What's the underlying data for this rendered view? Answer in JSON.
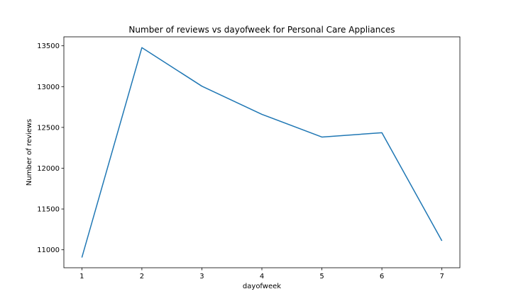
{
  "chart_data": {
    "type": "line",
    "title": "Number of reviews vs dayofweek for Personal Care Appliances",
    "xlabel": "dayofweek",
    "ylabel": "Number of reviews",
    "x": [
      1,
      2,
      3,
      4,
      5,
      6,
      7
    ],
    "series": [
      {
        "values": [
          10905,
          13478,
          13005,
          12660,
          12382,
          12435,
          11110
        ]
      }
    ],
    "xlim": [
      0.7,
      7.3
    ],
    "ylim": [
      10780,
      13610
    ],
    "xticks": [
      1,
      2,
      3,
      4,
      5,
      6,
      7
    ],
    "yticks": [
      11000,
      11500,
      12000,
      12500,
      13000,
      13500
    ],
    "grid": false,
    "line_color": "#1f77b4"
  }
}
